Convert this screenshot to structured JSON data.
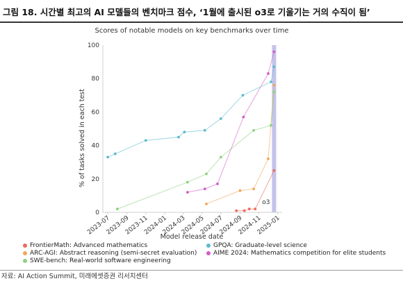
{
  "header": {
    "figure_title": "그림 18. 시간별 최고의 AI 모델들의 벤치마크 점수, ‘1월에 출시된 o3로 기울기는 거의 수직이 됨’"
  },
  "source": "자료: AI Action Summit, 미래에셋증권 리서치센터",
  "chart_data": {
    "type": "line",
    "title": "Scores of notable models on key benchmarks over time",
    "xlabel": "Model release date",
    "ylabel": "% of tasks solved in each test",
    "ylim": [
      0,
      100
    ],
    "yticks": [
      0,
      20,
      40,
      60,
      80,
      100
    ],
    "xticks": [
      "2023-07",
      "2023-09",
      "2023-11",
      "2024-01",
      "2024-03",
      "2024-05",
      "2024-07",
      "2024-09",
      "2024-11",
      "2025-01"
    ],
    "grid": false,
    "legend_position": "bottom",
    "highlight": {
      "label": "o3",
      "x": "2024-12-20",
      "color": "#b8b8e6"
    },
    "series": [
      {
        "name": "FrontierMath: Advanced mathematics",
        "color": "#ee6a5a",
        "points": [
          [
            "2024-08-20",
            1
          ],
          [
            "2024-09-15",
            1
          ],
          [
            "2024-10-01",
            2
          ],
          [
            "2024-10-20",
            2
          ],
          [
            "2024-12-20",
            25
          ]
        ]
      },
      {
        "name": "ARC-AGI: Abstract reasoning (semi-secret evaluation)",
        "color": "#f0a656",
        "points": [
          [
            "2024-05-15",
            5
          ],
          [
            "2024-09-01",
            13
          ],
          [
            "2024-10-15",
            14
          ],
          [
            "2024-12-01",
            32
          ],
          [
            "2024-12-20",
            76
          ]
        ]
      },
      {
        "name": "SWE-bench: Real-world software engineering",
        "color": "#8ed27e",
        "points": [
          [
            "2023-08-01",
            2
          ],
          [
            "2024-03-15",
            18
          ],
          [
            "2024-05-15",
            23
          ],
          [
            "2024-07-01",
            33
          ],
          [
            "2024-10-15",
            49
          ],
          [
            "2024-12-10",
            52
          ],
          [
            "2024-12-20",
            72
          ]
        ]
      },
      {
        "name": "GPQA: Graduate-level science",
        "color": "#5bbbcc",
        "points": [
          [
            "2023-07-01",
            33
          ],
          [
            "2023-07-25",
            35
          ],
          [
            "2023-11-01",
            43
          ],
          [
            "2024-02-15",
            45
          ],
          [
            "2024-03-05",
            48
          ],
          [
            "2024-05-10",
            49
          ],
          [
            "2024-07-01",
            56
          ],
          [
            "2024-09-10",
            70
          ],
          [
            "2024-12-10",
            78
          ],
          [
            "2024-12-20",
            87
          ]
        ]
      },
      {
        "name": "AIME 2024: Mathematics competition for elite students",
        "color": "#d35cc8",
        "points": [
          [
            "2024-03-15",
            12
          ],
          [
            "2024-05-10",
            14
          ],
          [
            "2024-06-20",
            17
          ],
          [
            "2024-09-12",
            57
          ],
          [
            "2024-12-01",
            83
          ],
          [
            "2024-12-20",
            96
          ]
        ]
      }
    ]
  },
  "legend": {
    "items": [
      {
        "label": "FrontierMath: Advanced mathematics",
        "color": "#ee6a5a"
      },
      {
        "label": "GPQA: Graduate-level science",
        "color": "#5bbbcc"
      },
      {
        "label": "ARC-AGI: Abstract reasoning (semi-secret evaluation)",
        "color": "#f0a656"
      },
      {
        "label": "AIME 2024: Mathematics competition for elite students",
        "color": "#d35cc8"
      },
      {
        "label": "SWE-bench: Real-world software engineering",
        "color": "#8ed27e"
      }
    ]
  }
}
